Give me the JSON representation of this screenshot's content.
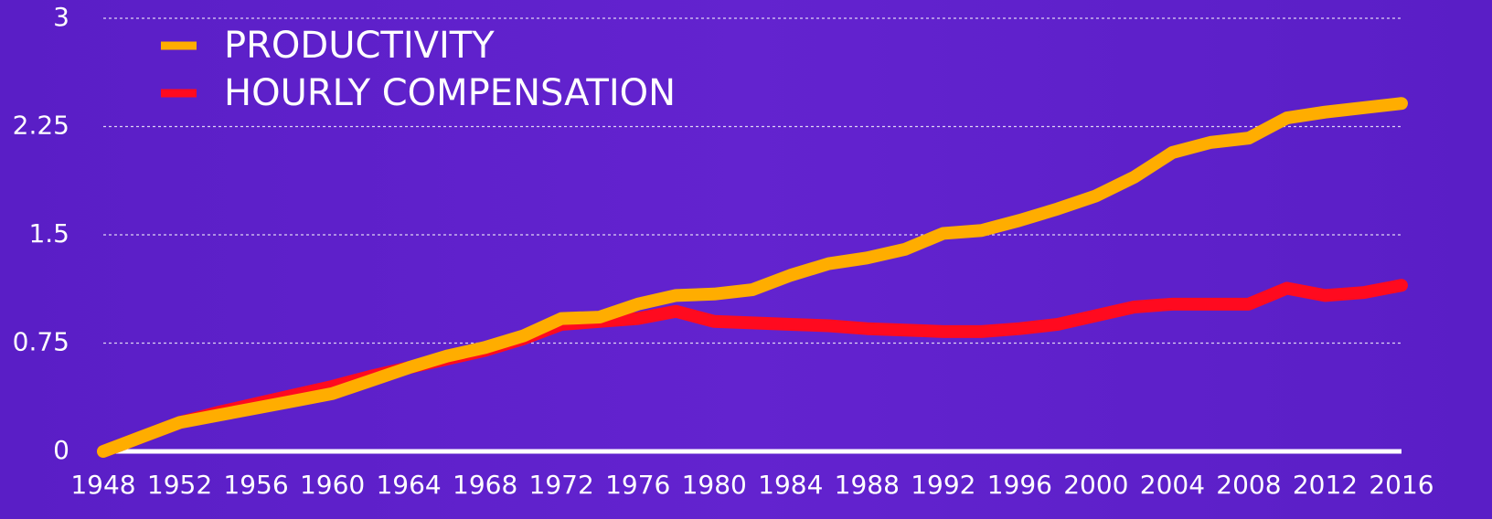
{
  "chart_data": {
    "type": "line",
    "x": [
      1948,
      1950,
      1952,
      1954,
      1956,
      1958,
      1960,
      1962,
      1964,
      1966,
      1968,
      1970,
      1972,
      1974,
      1976,
      1978,
      1980,
      1982,
      1984,
      1986,
      1988,
      1990,
      1992,
      1994,
      1996,
      1998,
      2000,
      2002,
      2004,
      2006,
      2008,
      2010,
      2012,
      2014,
      2016
    ],
    "series": [
      {
        "name": "PRODUCTIVITY",
        "color": "#ffad00",
        "values": [
          0,
          0.1,
          0.2,
          0.25,
          0.3,
          0.35,
          0.4,
          0.49,
          0.58,
          0.66,
          0.72,
          0.8,
          0.92,
          0.93,
          1.02,
          1.08,
          1.09,
          1.12,
          1.22,
          1.3,
          1.34,
          1.4,
          1.51,
          1.53,
          1.6,
          1.68,
          1.77,
          1.9,
          2.07,
          2.14,
          2.17,
          2.31,
          2.35,
          2.38,
          2.41
        ]
      },
      {
        "name": "HOURLY COMPENSATION",
        "color": "#ff0a1f",
        "values": [
          0,
          0.1,
          0.2,
          0.27,
          0.33,
          0.39,
          0.45,
          0.52,
          0.58,
          0.64,
          0.7,
          0.78,
          0.88,
          0.9,
          0.92,
          0.97,
          0.9,
          0.89,
          0.88,
          0.87,
          0.85,
          0.84,
          0.83,
          0.83,
          0.85,
          0.88,
          0.94,
          1.0,
          1.02,
          1.02,
          1.02,
          1.13,
          1.08,
          1.1,
          1.15
        ]
      }
    ],
    "xlim": [
      1948,
      2016
    ],
    "xticks": [
      1948,
      1952,
      1956,
      1960,
      1964,
      1968,
      1972,
      1976,
      1980,
      1984,
      1988,
      1992,
      1996,
      2000,
      2004,
      2008,
      2012,
      2016
    ],
    "ylim": [
      0,
      3
    ],
    "yticks": [
      0,
      0.75,
      1.5,
      2.25,
      3
    ],
    "grid": true,
    "legend": "top-left"
  }
}
